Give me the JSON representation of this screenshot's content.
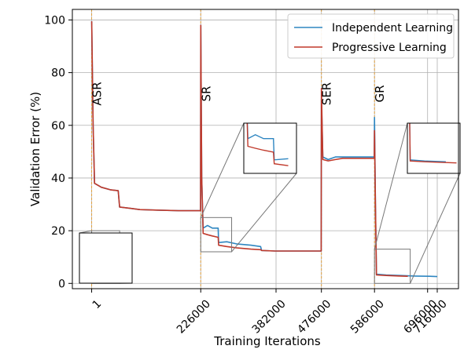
{
  "chart_data": {
    "type": "line",
    "title": "",
    "xlabel": "Training Iterations",
    "ylabel": "Validation Error (%)",
    "xlim": [
      -40000,
      760000
    ],
    "ylim": [
      -2,
      104
    ],
    "x_ticks": [
      1,
      226000,
      382000,
      476000,
      586000,
      696000,
      716000
    ],
    "x_tick_labels": [
      "1",
      "226000",
      "382000",
      "476000",
      "586000",
      "696000",
      "716000"
    ],
    "y_ticks": [
      0,
      20,
      40,
      60,
      80,
      100
    ],
    "y_tick_labels": [
      "0",
      "20",
      "40",
      "60",
      "80",
      "100"
    ],
    "grid": true,
    "legend_position": "top-right",
    "phase_boundaries": [
      {
        "x": 1,
        "label": "ASR"
      },
      {
        "x": 226000,
        "label": "SR"
      },
      {
        "x": 476000,
        "label": "SER"
      },
      {
        "x": 586000,
        "label": "GR"
      }
    ],
    "series": [
      {
        "name": "Independent Learning",
        "color": "#2e86c1",
        "points": [
          [
            1,
            99.5
          ],
          [
            3000,
            60
          ],
          [
            6000,
            38
          ],
          [
            20000,
            36.5
          ],
          [
            40000,
            35.5
          ],
          [
            55000,
            35.2
          ],
          [
            58000,
            29
          ],
          [
            80000,
            28.5
          ],
          [
            100000,
            28
          ],
          [
            140000,
            27.8
          ],
          [
            180000,
            27.6
          ],
          [
            224000,
            27.6
          ],
          [
            225500,
            27.6
          ],
          [
            226000,
            98
          ],
          [
            228000,
            40
          ],
          [
            231000,
            21
          ],
          [
            240000,
            22
          ],
          [
            250000,
            21
          ],
          [
            262000,
            21
          ],
          [
            263000,
            15.5
          ],
          [
            280000,
            15.8
          ],
          [
            300000,
            15
          ],
          [
            330000,
            14.5
          ],
          [
            350000,
            14
          ],
          [
            352000,
            12.5
          ],
          [
            380000,
            12.3
          ],
          [
            420000,
            12.3
          ],
          [
            473000,
            12.3
          ],
          [
            475500,
            12.3
          ],
          [
            476000,
            70
          ],
          [
            479000,
            48
          ],
          [
            490000,
            47
          ],
          [
            505000,
            48
          ],
          [
            520000,
            48
          ],
          [
            540000,
            48
          ],
          [
            560000,
            48
          ],
          [
            584000,
            48
          ],
          [
            585500,
            48
          ],
          [
            586000,
            63
          ],
          [
            588000,
            30
          ],
          [
            590000,
            3.5
          ],
          [
            610000,
            3.2
          ],
          [
            640000,
            3
          ],
          [
            670000,
            2.8
          ],
          [
            700000,
            2.7
          ],
          [
            716000,
            2.6
          ]
        ]
      },
      {
        "name": "Progressive Learning",
        "color": "#c0392b",
        "points": [
          [
            1,
            99.5
          ],
          [
            3000,
            60
          ],
          [
            6000,
            38
          ],
          [
            20000,
            36.5
          ],
          [
            40000,
            35.5
          ],
          [
            55000,
            35.2
          ],
          [
            58000,
            29
          ],
          [
            80000,
            28.5
          ],
          [
            100000,
            28
          ],
          [
            140000,
            27.8
          ],
          [
            180000,
            27.6
          ],
          [
            224000,
            27.6
          ],
          [
            225500,
            27.6
          ],
          [
            226000,
            98
          ],
          [
            228000,
            40
          ],
          [
            231000,
            19
          ],
          [
            240000,
            18.5
          ],
          [
            250000,
            18
          ],
          [
            262000,
            17.5
          ],
          [
            263000,
            14.5
          ],
          [
            280000,
            14
          ],
          [
            300000,
            13.5
          ],
          [
            330000,
            13
          ],
          [
            350000,
            12.8
          ],
          [
            352000,
            12.5
          ],
          [
            380000,
            12.3
          ],
          [
            420000,
            12.3
          ],
          [
            473000,
            12.3
          ],
          [
            475500,
            12.3
          ],
          [
            476000,
            74
          ],
          [
            479000,
            47
          ],
          [
            490000,
            46.5
          ],
          [
            505000,
            47
          ],
          [
            520000,
            47.5
          ],
          [
            540000,
            47.5
          ],
          [
            560000,
            47.5
          ],
          [
            584000,
            47.5
          ],
          [
            585500,
            47.5
          ],
          [
            586000,
            58
          ],
          [
            588000,
            30
          ],
          [
            590000,
            3.2
          ],
          [
            610000,
            3
          ],
          [
            640000,
            2.8
          ],
          [
            655000,
            2.7
          ]
        ]
      }
    ],
    "insets": [
      {
        "name": "ASR inset",
        "zoom_x": [
          0,
          58000
        ],
        "zoom_y": [
          0,
          20
        ]
      },
      {
        "name": "SR inset",
        "zoom_x": [
          226000,
          290000
        ],
        "zoom_y": [
          12,
          25
        ]
      },
      {
        "name": "SER inset",
        "zoom_x": [
          476000,
          548000
        ],
        "zoom_y": [
          42,
          55
        ]
      },
      {
        "name": "GR inset",
        "zoom_x": [
          586000,
          660000
        ],
        "zoom_y": [
          0,
          13
        ]
      }
    ]
  }
}
